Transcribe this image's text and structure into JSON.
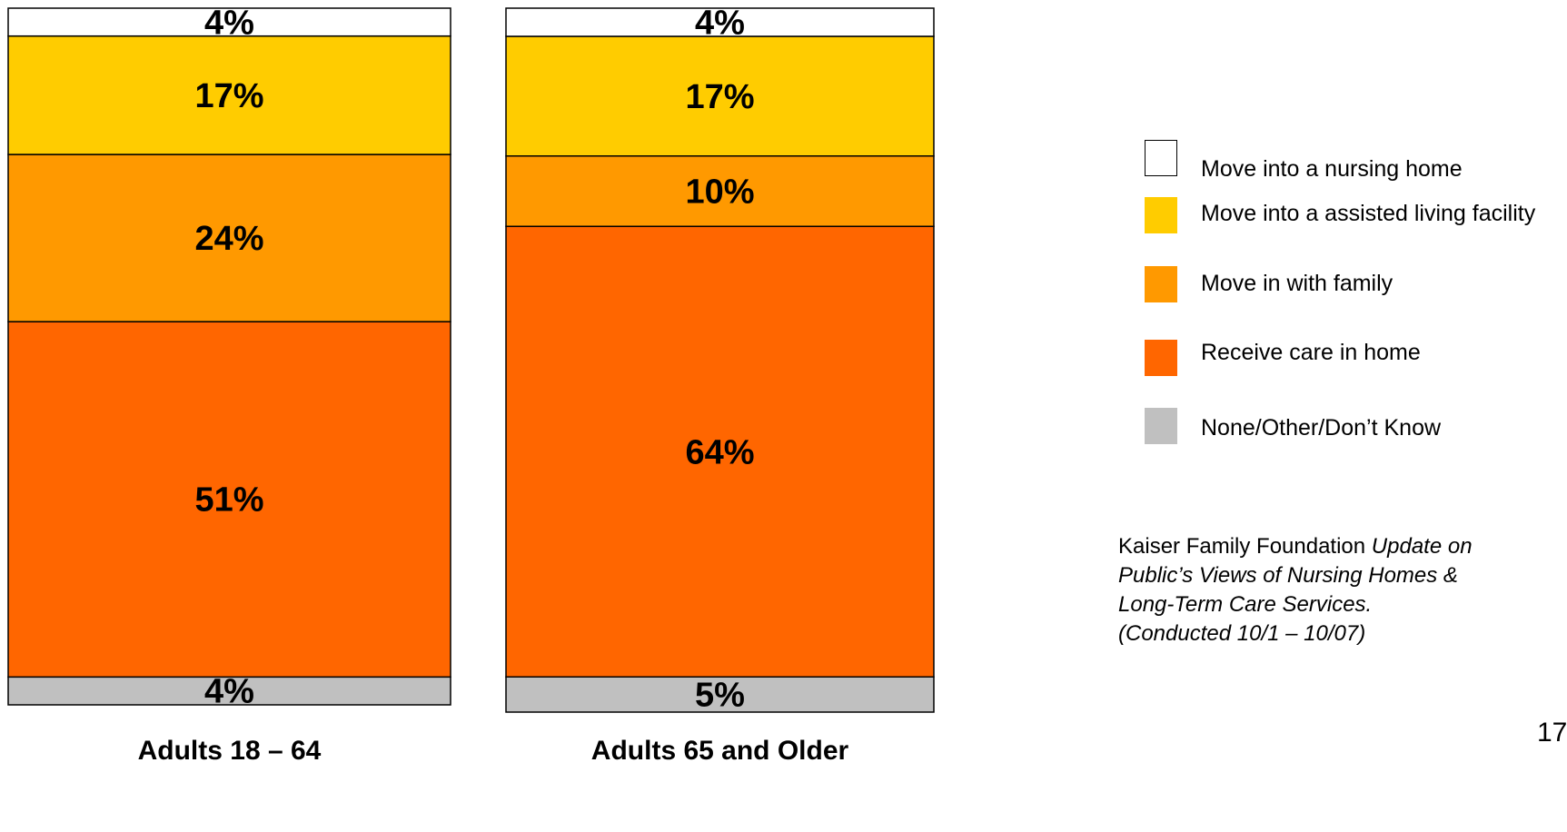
{
  "chart_data": {
    "type": "bar",
    "stacked": true,
    "categories": [
      "Adults 18 – 64",
      "Adults 65 and Older"
    ],
    "series": [
      {
        "name": "None/Other/Don’t Know",
        "values": [
          4,
          5
        ],
        "labels": [
          "4%",
          "5%"
        ],
        "color": "#c0c0c0"
      },
      {
        "name": "Receive care in home",
        "values": [
          51,
          64
        ],
        "labels": [
          "51%",
          "64%"
        ],
        "color": "#ff6600"
      },
      {
        "name": "Move in with family",
        "values": [
          24,
          10
        ],
        "labels": [
          "24%",
          "10%"
        ],
        "color": "#ff9900"
      },
      {
        "name": "Move into a assisted living facility",
        "values": [
          17,
          17
        ],
        "labels": [
          "17%",
          "17%"
        ],
        "color": "#ffcc00"
      },
      {
        "name": "Move into a nursing home",
        "values": [
          4,
          4
        ],
        "labels": [
          "4%",
          "4%"
        ],
        "color": "#ffffff"
      }
    ],
    "ylim": [
      0,
      100
    ],
    "legend_position": "right",
    "grid": false
  },
  "legend": {
    "items": [
      {
        "label": "Move into a nursing home",
        "color": "#ffffff"
      },
      {
        "label": "Move into a assisted living facility",
        "color": "#ffcc00"
      },
      {
        "label": "Move in with family",
        "color": "#ff9900"
      },
      {
        "label": "Receive care in home",
        "color": "#ff6600"
      },
      {
        "label": "None/Other/Don’t Know",
        "color": "#c0c0c0"
      }
    ]
  },
  "source": {
    "prefix": "Kaiser Family Foundation ",
    "title_start": "Update on",
    "title_line2": "Public’s Views of Nursing Homes &",
    "title_line3": "Long-Term Care Services.",
    "conducted": "(Conducted 10/1 – 10/07)"
  },
  "page_number": "17"
}
